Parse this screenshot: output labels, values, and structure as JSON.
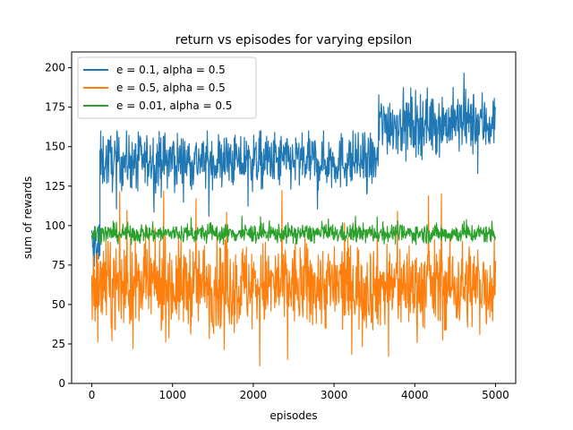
{
  "chart_data": {
    "type": "line",
    "title": "return vs episodes for varying epsilon",
    "xlabel": "episodes",
    "ylabel": "sum of rewards",
    "xlim": [
      -250,
      5250
    ],
    "ylim": [
      0,
      210
    ],
    "xticks": [
      0,
      1000,
      2000,
      3000,
      4000,
      5000
    ],
    "yticks": [
      0,
      25,
      50,
      75,
      100,
      125,
      150,
      175,
      200
    ],
    "grid": false,
    "legend_position": "top-left",
    "episodes": 5000,
    "series": [
      {
        "name": "e = 0.1, alpha = 0.5",
        "color": "#1f77b4",
        "segments": [
          {
            "from": 0,
            "to": 100,
            "center": 85,
            "spread": 12,
            "min": 74,
            "max": 105
          },
          {
            "from": 100,
            "to": 3550,
            "center": 141,
            "spread": 9,
            "min": 105,
            "max": 160
          },
          {
            "from": 3550,
            "to": 5000,
            "center": 165,
            "spread": 10,
            "min": 130,
            "max": 200
          }
        ]
      },
      {
        "name": "e = 0.5, alpha = 0.5",
        "color": "#ff7f0e",
        "segments": [
          {
            "from": 0,
            "to": 5000,
            "center": 62,
            "spread": 14,
            "min": 9,
            "max": 130
          }
        ]
      },
      {
        "name": "e = 0.01, alpha = 0.5",
        "color": "#2ca02c",
        "segments": [
          {
            "from": 0,
            "to": 5000,
            "center": 95,
            "spread": 3,
            "min": 88,
            "max": 106
          }
        ]
      }
    ]
  }
}
